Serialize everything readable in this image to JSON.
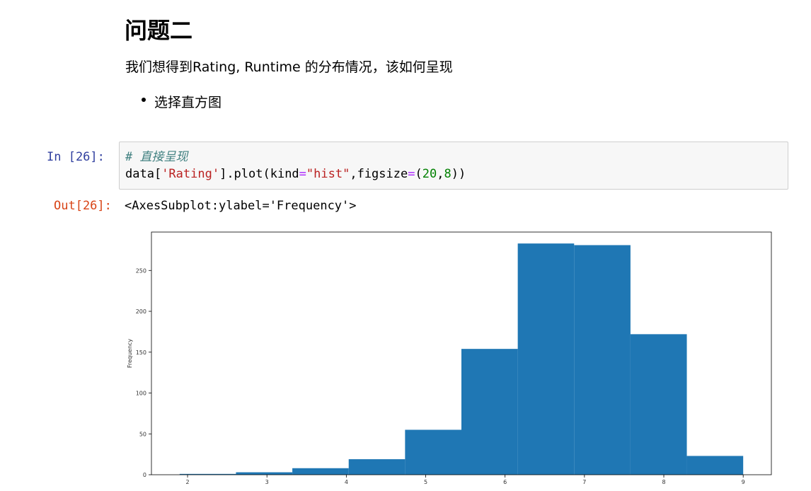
{
  "markdown": {
    "title": "问题二",
    "paragraph": "我们想得到Rating, Runtime 的分布情况，该如何呈现",
    "bullets": [
      "选择直方图"
    ]
  },
  "cell": {
    "in_prompt": "In  [26]:",
    "comment": "# 直接呈现",
    "code_parts": [
      "data[",
      "'Rating'",
      "].plot(kind",
      "=",
      "\"hist\"",
      ",figsize",
      "=",
      "(",
      "20",
      ",",
      "8",
      "))"
    ],
    "out_prompt": "Out[26]:",
    "out_text": "<AxesSubplot:ylabel='Frequency'>"
  },
  "chart_data": {
    "type": "bar",
    "title": "",
    "xlabel": "",
    "ylabel": "Frequency",
    "bins": [
      {
        "x0": 1.9,
        "x1": 2.61,
        "count": 1
      },
      {
        "x0": 2.61,
        "x1": 3.32,
        "count": 3
      },
      {
        "x0": 3.32,
        "x1": 4.03,
        "count": 8
      },
      {
        "x0": 4.03,
        "x1": 4.74,
        "count": 19
      },
      {
        "x0": 4.74,
        "x1": 5.45,
        "count": 55
      },
      {
        "x0": 5.45,
        "x1": 6.16,
        "count": 154
      },
      {
        "x0": 6.16,
        "x1": 6.87,
        "count": 283
      },
      {
        "x0": 6.87,
        "x1": 7.58,
        "count": 281
      },
      {
        "x0": 7.58,
        "x1": 8.29,
        "count": 172
      },
      {
        "x0": 8.29,
        "x1": 9.0,
        "count": 23
      }
    ],
    "xticks": [
      2,
      3,
      4,
      5,
      6,
      7,
      8,
      9
    ],
    "yticks": [
      0,
      50,
      100,
      150,
      200,
      250
    ],
    "xlim": [
      1.545,
      9.355
    ],
    "ylim": [
      0,
      297
    ],
    "bar_color": "#1f77b4",
    "grid": false
  }
}
